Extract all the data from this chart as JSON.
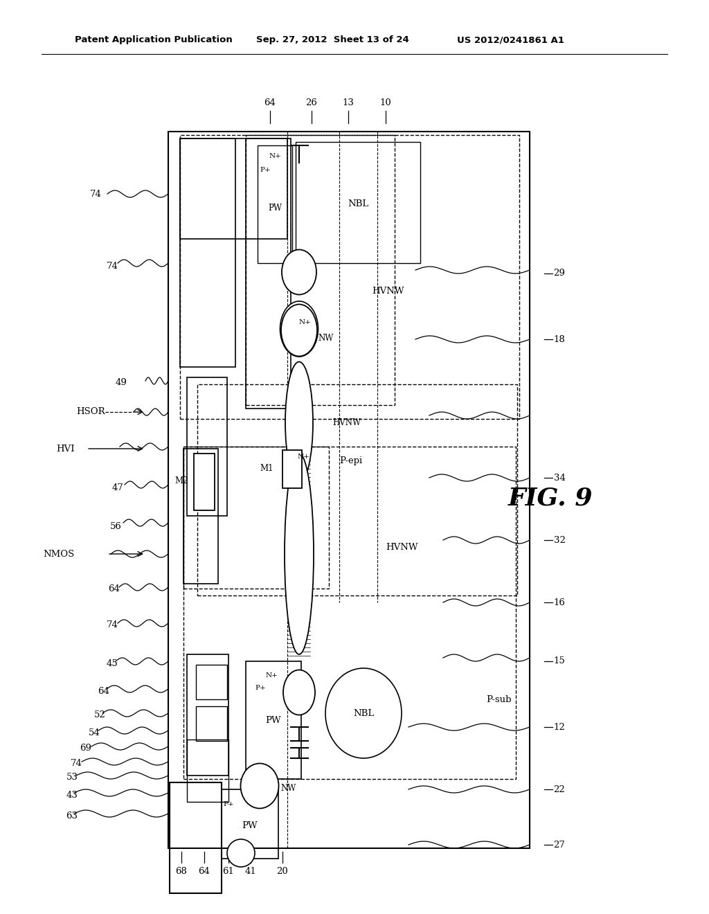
{
  "bg_color": "#ffffff",
  "lc": "#000000",
  "header_left": "Patent Application Publication",
  "header_mid": "Sep. 27, 2012  Sheet 13 of 24",
  "header_right": "US 2012/0241861 A1",
  "fig_label": "FIG. 9"
}
